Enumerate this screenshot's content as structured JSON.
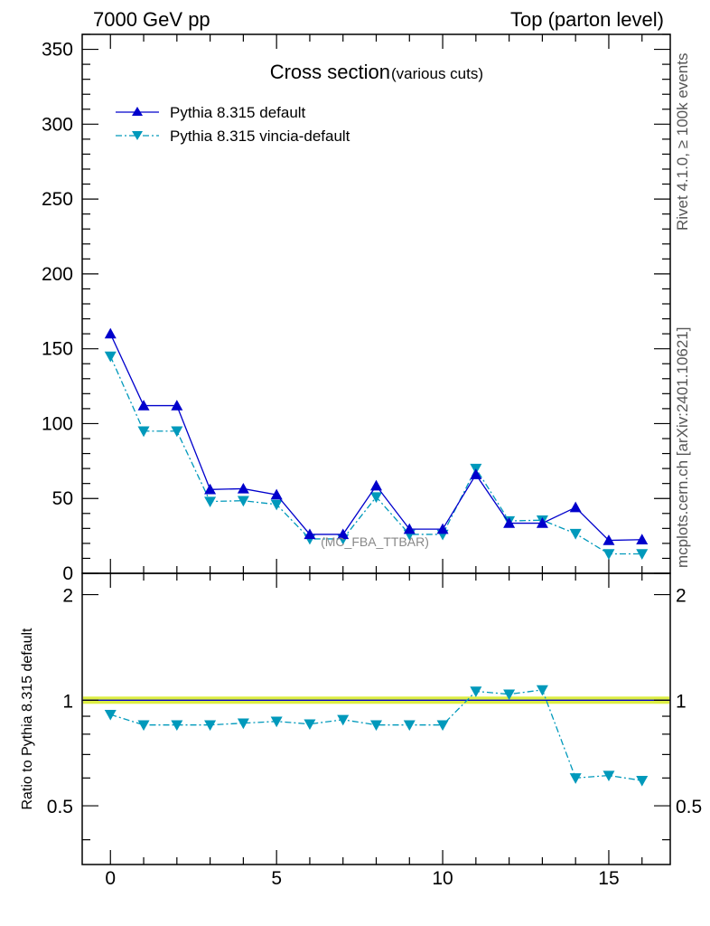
{
  "header": {
    "left": "7000 GeV pp",
    "right": "Top (parton level)"
  },
  "side_labels": {
    "rivet": "Rivet 4.1.0, ≥ 100k events",
    "mcplots": "mcplots.cern.ch [arXiv:2401.10621]"
  },
  "chart_data": [
    {
      "type": "line",
      "panel": "main",
      "title": "Cross section",
      "subtitle": "(various cuts)",
      "annotation": "(MC_FBA_TTBAR)",
      "xlim": [
        -0.85,
        16.85
      ],
      "ylim": [
        0,
        360
      ],
      "xticks": [
        0,
        5,
        10,
        15
      ],
      "yticks": [
        0,
        50,
        100,
        150,
        200,
        250,
        300,
        350
      ],
      "ytick_labels": [
        "0",
        "50",
        "100",
        "150",
        "200",
        "250",
        "300",
        "350"
      ],
      "legend_position": "top-left",
      "x": [
        0,
        1,
        2,
        3,
        4,
        5,
        6,
        7,
        8,
        9,
        10,
        11,
        12,
        13,
        14,
        15,
        16
      ],
      "series": [
        {
          "name": "Pythia 8.315 default",
          "color": "#0000cc",
          "marker": "triangle-up",
          "values": [
            160,
            112,
            112,
            56,
            56.5,
            52.5,
            26,
            26,
            58.5,
            29.5,
            29.5,
            66,
            33.5,
            33.5,
            44,
            22,
            22.5
          ]
        },
        {
          "name": "Pythia 8.315 vincia-default",
          "color": "#0099bb",
          "marker": "triangle-down",
          "values": [
            145,
            95,
            95,
            48,
            48.5,
            46,
            23,
            23,
            51,
            26,
            26,
            70,
            35,
            35.5,
            26.5,
            13,
            13
          ]
        }
      ]
    },
    {
      "type": "line",
      "panel": "ratio",
      "ylabel": "Ratio to Pythia 8.315 default",
      "xlim": [
        -0.85,
        16.85
      ],
      "ylim": [
        0.34,
        2.3
      ],
      "xticks": [
        0,
        5,
        10,
        15
      ],
      "xtick_labels": [
        "0",
        "5",
        "10",
        "15"
      ],
      "yticks": [
        0.5,
        1,
        2
      ],
      "ytick_labels": [
        "0.5",
        "1",
        "2"
      ],
      "reference_line": 1,
      "band_color": "#ddee44",
      "x": [
        0,
        1,
        2,
        3,
        4,
        5,
        6,
        7,
        8,
        9,
        10,
        11,
        12,
        13,
        14,
        15,
        16
      ],
      "series": [
        {
          "name": "Pythia 8.315 vincia-default",
          "color": "#0099bb",
          "marker": "triangle-down",
          "values": [
            0.91,
            0.85,
            0.85,
            0.85,
            0.86,
            0.87,
            0.855,
            0.88,
            0.85,
            0.85,
            0.85,
            1.06,
            1.04,
            1.07,
            0.6,
            0.61,
            0.59
          ]
        }
      ]
    }
  ]
}
